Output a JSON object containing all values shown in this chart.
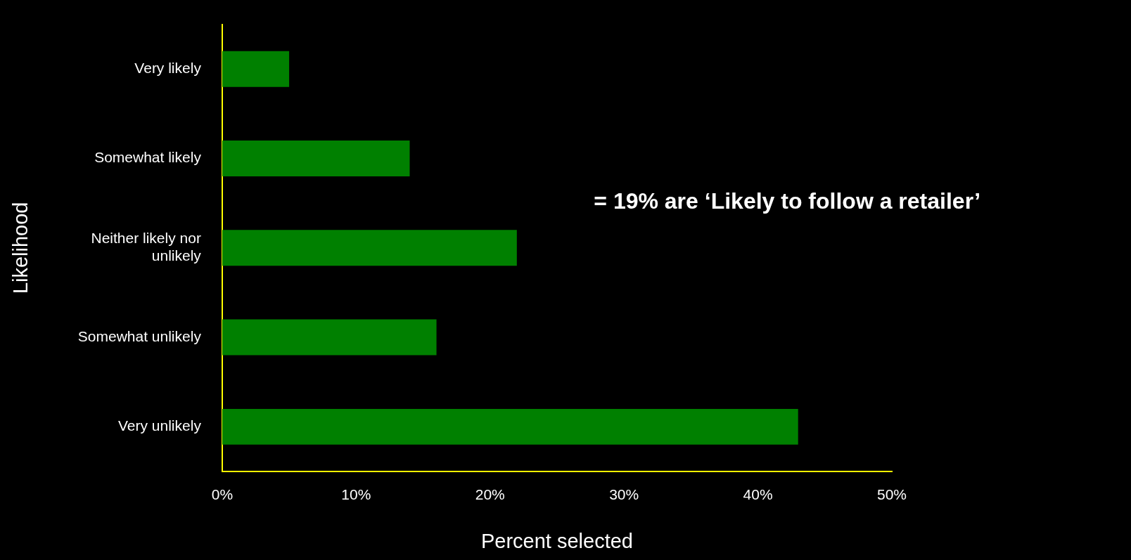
{
  "chart_data": {
    "type": "bar",
    "orientation": "horizontal",
    "categories": [
      "Very likely",
      "Somewhat likely",
      "Neither likely nor unlikely",
      "Somewhat unlikely",
      "Very unlikely"
    ],
    "values": [
      5,
      14,
      22,
      16,
      43
    ],
    "color": "#008000",
    "xlabel": "Percent selected",
    "ylabel": "Likelihood",
    "xlim": [
      0,
      50
    ],
    "xticks": [
      {
        "value": 0,
        "label": "0%"
      },
      {
        "value": 10,
        "label": "10%"
      },
      {
        "value": 20,
        "label": "20%"
      },
      {
        "value": 30,
        "label": "30%"
      },
      {
        "value": 40,
        "label": "40%"
      },
      {
        "value": 50,
        "label": "50%"
      }
    ],
    "annotations": [
      "= 19% are ‘Likely to follow a retailer’"
    ],
    "grid": false,
    "legend": false
  }
}
